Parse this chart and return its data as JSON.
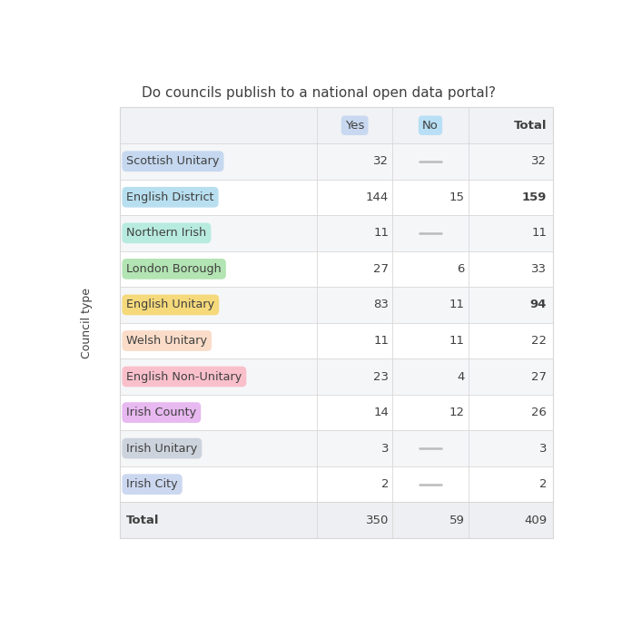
{
  "title": "Do councils publish to a national open data portal?",
  "rows": [
    {
      "label": "Scottish Unitary",
      "badge_color": "#c5d8ef",
      "yes": "32",
      "no": null,
      "total": "32",
      "total_bold": false
    },
    {
      "label": "English District",
      "badge_color": "#b8dff0",
      "yes": "144",
      "no": "15",
      "total": "159",
      "total_bold": true
    },
    {
      "label": "Northern Irish",
      "badge_color": "#b8ebe0",
      "yes": "11",
      "no": null,
      "total": "11",
      "total_bold": false
    },
    {
      "label": "London Borough",
      "badge_color": "#b3e4b3",
      "yes": "27",
      "no": "6",
      "total": "33",
      "total_bold": false
    },
    {
      "label": "English Unitary",
      "badge_color": "#f5d97a",
      "yes": "83",
      "no": "11",
      "total": "94",
      "total_bold": true
    },
    {
      "label": "Welsh Unitary",
      "badge_color": "#fadcc8",
      "yes": "11",
      "no": "11",
      "total": "22",
      "total_bold": false
    },
    {
      "label": "English Non-Unitary",
      "badge_color": "#f9c0cc",
      "yes": "23",
      "no": "4",
      "total": "27",
      "total_bold": false
    },
    {
      "label": "Irish County",
      "badge_color": "#e8b8f0",
      "yes": "14",
      "no": "12",
      "total": "26",
      "total_bold": false
    },
    {
      "label": "Irish Unitary",
      "badge_color": "#cdd3dc",
      "yes": "3",
      "no": null,
      "total": "3",
      "total_bold": false
    },
    {
      "label": "Irish City",
      "badge_color": "#ccd8f0",
      "yes": "2",
      "no": null,
      "total": "2",
      "total_bold": false
    }
  ],
  "total_row": {
    "label": "Total",
    "yes": "350",
    "no": "59",
    "total": "409"
  },
  "yes_badge_color": "#c8d8f0",
  "no_badge_color": "#b8dff5",
  "header_bg": "#f0f2f5",
  "row_bg_odd": "#f5f6f8",
  "row_bg_even": "#ffffff",
  "total_row_bg": "#eeeff2",
  "border_color": "#d8d8d8",
  "text_color": "#404040",
  "dash_color": "#bbbbbb",
  "ylabel": "Council type",
  "figsize": [
    6.85,
    6.81
  ],
  "dpi": 100,
  "title_fontsize": 11.0,
  "label_fontsize": 9.2,
  "cell_fontsize": 9.5,
  "header_fontsize": 9.5
}
